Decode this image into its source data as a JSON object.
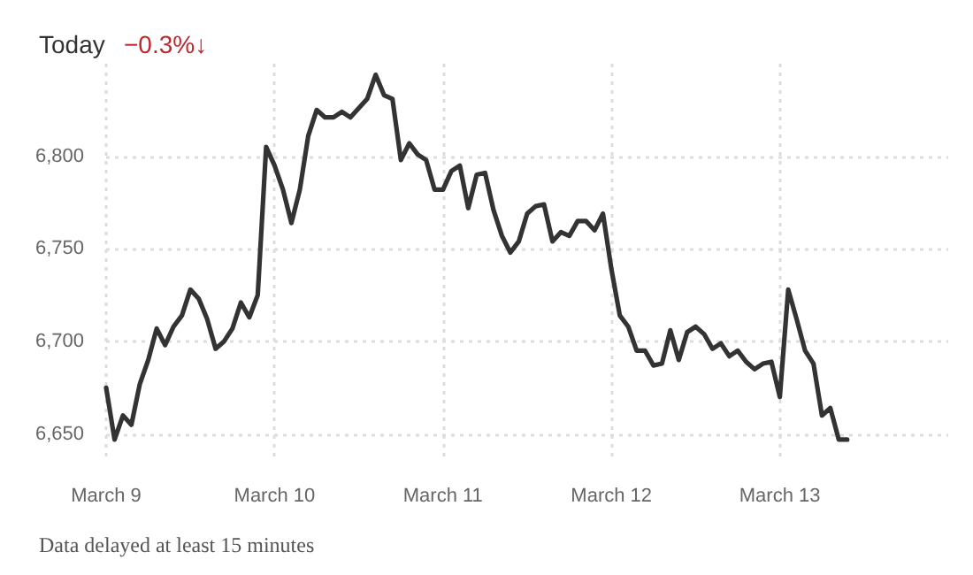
{
  "chart_data": {
    "type": "line",
    "subtitle": "Today",
    "annotations": [
      "−0.3%↓",
      "Data delayed at least 15 minutes"
    ],
    "categories": [
      "March 9",
      null,
      null,
      null,
      null,
      null,
      null,
      null,
      null,
      null,
      null,
      null,
      null,
      null,
      null,
      null,
      null,
      null,
      null,
      null,
      "March 10",
      null,
      null,
      null,
      null,
      null,
      null,
      null,
      null,
      null,
      null,
      null,
      null,
      null,
      null,
      null,
      null,
      null,
      null,
      null,
      "March 11",
      null,
      null,
      null,
      null,
      null,
      null,
      null,
      null,
      null,
      null,
      null,
      null,
      null,
      null,
      null,
      null,
      null,
      null,
      null,
      "March 12",
      null,
      null,
      null,
      null,
      null,
      null,
      null,
      null,
      null,
      null,
      null,
      null,
      null,
      null,
      null,
      null,
      null,
      null,
      null,
      "March 13",
      null,
      null,
      null,
      null,
      null,
      null,
      null,
      null,
      null,
      null,
      null,
      null,
      null,
      null,
      null,
      null,
      null,
      null,
      null,
      null
    ],
    "series": [
      {
        "color": "#333333",
        "values": [
          6675,
          6647,
          6660,
          6655,
          6677,
          6690,
          6707,
          6698,
          6708,
          6714,
          6728,
          6723,
          6712,
          6696,
          6700,
          6707,
          6721,
          6713,
          6725,
          6805,
          6795,
          6782,
          6764,
          6782,
          6811,
          6825,
          6821,
          6821,
          6824,
          6821,
          6826,
          6831,
          6844,
          6833,
          6831,
          6798,
          6807,
          6801,
          6798,
          6782,
          6782,
          6792,
          6795,
          6772,
          6790,
          6791,
          6771,
          6757,
          6748,
          6754,
          6769,
          6773,
          6774,
          6754,
          6759,
          6757,
          6765,
          6765,
          6760,
          6769,
          6739,
          6714,
          6708,
          6695,
          6695,
          6687,
          6688,
          6706,
          6690,
          6705,
          6708,
          6704,
          6696,
          6699,
          6692,
          6695,
          6689,
          6685,
          6688,
          6689,
          6670,
          6728,
          6712,
          6695,
          6688,
          6660,
          6664,
          6647,
          6647,
          null,
          null,
          null,
          null,
          null,
          null,
          null,
          null,
          null,
          null,
          null,
          null
        ]
      }
    ],
    "ylim": [
      6635,
      6850
    ],
    "yticks": [
      {
        "value": 6650,
        "label": "6,650"
      },
      {
        "value": 6700,
        "label": "6,700"
      },
      {
        "value": 6750,
        "label": "6,750"
      },
      {
        "value": 6800,
        "label": "6,800"
      }
    ],
    "grid": true,
    "marker": "none",
    "line_style": "solid"
  }
}
